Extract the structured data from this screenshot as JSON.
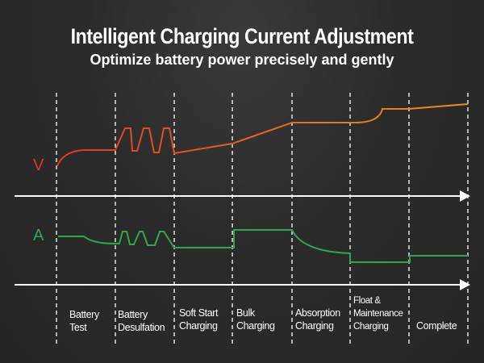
{
  "header": {
    "title": "Intelligent Charging Current Adjustment",
    "subtitle": "Optimize battery power precisely and gently"
  },
  "axes": {
    "voltage_label": "V",
    "current_label": "A"
  },
  "stages": [
    {
      "line1": "Battery",
      "line2": "Test"
    },
    {
      "line1": "Battery",
      "line2": "Desulfation"
    },
    {
      "line1": "Soft Start",
      "line2": "Charging"
    },
    {
      "line1": "Bulk",
      "line2": "Charging"
    },
    {
      "line1": "Absorption",
      "line2": "Charging"
    },
    {
      "line1": "Float &",
      "line2": "Maintenance",
      "line3": "Charging"
    },
    {
      "line1": "Complete",
      "line2": ""
    }
  ],
  "colors": {
    "voltage_start": "#e03a1e",
    "voltage_end": "#e8901e",
    "current": "#2fa84a",
    "axis": "#ffffff",
    "background": "#2b2b2b"
  }
}
